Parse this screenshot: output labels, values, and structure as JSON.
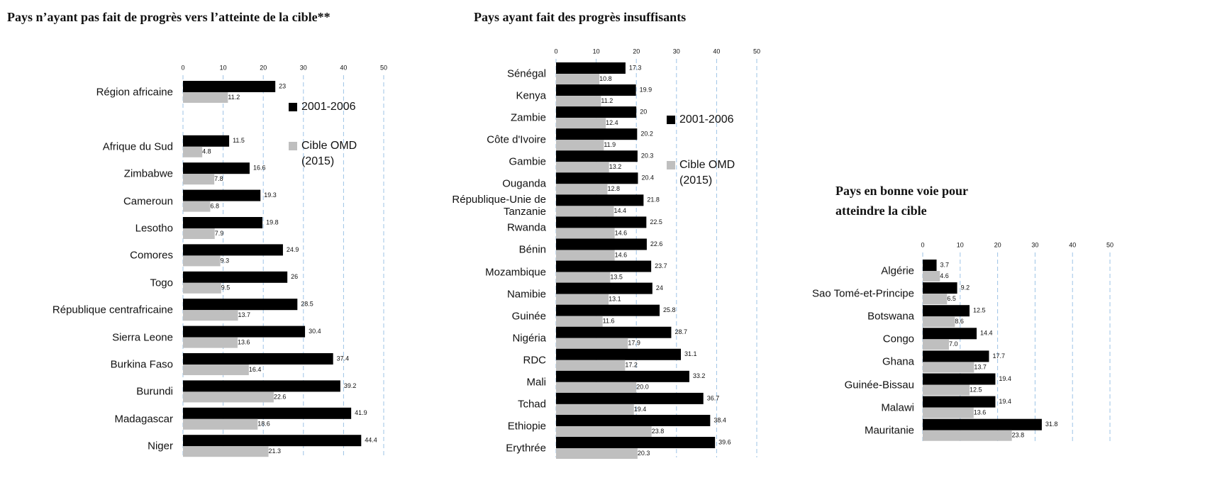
{
  "chart_data": [
    {
      "type": "bar",
      "orientation": "horizontal",
      "title": "Pays n’ayant pas fait de progrès vers l’atteinte de la cible**",
      "categories": [
        "Région africaine",
        null,
        "Afrique du Sud",
        "Zimbabwe",
        "Cameroun",
        "Lesotho",
        "Comores",
        "Togo",
        "République centrafricaine",
        "Sierra Leone",
        "Burkina Faso",
        "Burundi",
        "Madagascar",
        "Niger"
      ],
      "series": [
        {
          "name": "2001-2006",
          "color": "#000000",
          "values": [
            23,
            null,
            11.5,
            16.6,
            19.3,
            19.8,
            24.9,
            26,
            28.5,
            30.4,
            37.4,
            39.2,
            41.9,
            44.4
          ]
        },
        {
          "name": "Cible OMD (2015)",
          "color": "#bfbfbf",
          "values": [
            11.2,
            null,
            4.8,
            7.8,
            6.8,
            7.9,
            9.3,
            9.5,
            13.7,
            13.6,
            16.4,
            22.6,
            18.6,
            21.3
          ]
        }
      ],
      "xlim": [
        0,
        50
      ],
      "xticks": [
        0,
        10,
        20,
        30,
        40,
        50
      ],
      "grid": true,
      "legend": true
    },
    {
      "type": "bar",
      "orientation": "horizontal",
      "title": "Pays ayant fait des progrès insuffisants",
      "categories": [
        "Sénégal",
        "Kenya",
        "Zambie",
        "Côte d'Ivoire",
        "Gambie",
        "Ouganda",
        "République-Unie de Tanzanie",
        "Rwanda",
        "Bénin",
        "Mozambique",
        "Namibie",
        "Guinée",
        "Nigéria",
        "RDC",
        "Mali",
        "Tchad",
        "Ethiopie",
        "Erythrée"
      ],
      "series": [
        {
          "name": "2001-2006",
          "color": "#000000",
          "values": [
            17.3,
            19.9,
            20,
            20.2,
            20.3,
            20.4,
            21.8,
            22.5,
            22.6,
            23.7,
            24,
            25.8,
            28.7,
            31.1,
            33.2,
            36.7,
            38.4,
            39.6
          ]
        },
        {
          "name": "Cible OMD (2015)",
          "color": "#bfbfbf",
          "values": [
            10.8,
            11.2,
            12.4,
            11.9,
            13.2,
            12.8,
            14.4,
            14.6,
            14.6,
            13.5,
            13.1,
            11.6,
            17.9,
            17.2,
            20,
            19.4,
            23.8,
            20.3
          ],
          "value_labels": [
            "10.8",
            "11.2",
            "12.4",
            "11.9",
            "13.2",
            "12.8",
            "14.4",
            "14.6",
            "14.6",
            "13.5",
            "13.1",
            "11.6",
            "17.9",
            "17.2",
            "20.0",
            "19.4",
            "23.8",
            "20.3"
          ]
        }
      ],
      "xlim": [
        0,
        50
      ],
      "xticks": [
        0,
        10,
        20,
        30,
        40,
        50
      ],
      "grid": true,
      "legend": true
    },
    {
      "type": "bar",
      "orientation": "horizontal",
      "title": "Pays en bonne voie pour atteindre la cible",
      "categories": [
        "Algérie",
        "Sao Tomé-et-Principe",
        "Botswana",
        "Congo",
        "Ghana",
        "Guinée-Bissau",
        "Malawi",
        "Mauritanie"
      ],
      "series": [
        {
          "name": "2001-2006",
          "color": "#000000",
          "values": [
            3.7,
            9.2,
            12.5,
            14.4,
            17.7,
            19.4,
            19.4,
            31.8
          ]
        },
        {
          "name": "Cible OMD (2015)",
          "color": "#bfbfbf",
          "values": [
            4.6,
            6.5,
            8.6,
            7,
            13.7,
            12.5,
            13.6,
            23.8
          ],
          "value_labels": [
            "4.6",
            "6.5",
            "8.6",
            "7.0",
            "13.7",
            "12.5",
            "13.6",
            "23.8"
          ]
        }
      ],
      "xlim": [
        0,
        50
      ],
      "xticks": [
        0,
        10,
        20,
        30,
        40,
        50
      ],
      "grid": true,
      "legend": false
    }
  ]
}
